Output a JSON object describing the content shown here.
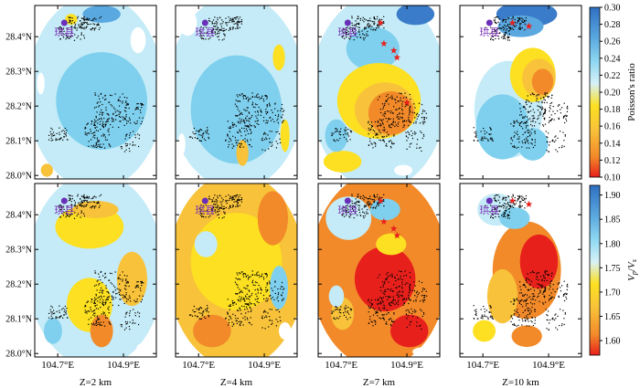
{
  "chart_data": {
    "type": "heatmap",
    "panel_layout": {
      "rows": 2,
      "cols": 4
    },
    "x_ticks": [
      "104.7°E",
      "104.9°E"
    ],
    "x_tick_values": [
      104.7,
      104.9
    ],
    "y_ticks": [
      "28.4°N",
      "28.3°N",
      "28.2°N",
      "28.1°N",
      "28.0°N"
    ],
    "y_tick_values": [
      28.4,
      28.3,
      28.2,
      28.1,
      28.0
    ],
    "xlim": [
      104.63,
      105.0
    ],
    "ylim": [
      27.99,
      28.49
    ],
    "depth_labels": [
      "Z=2 km",
      "Z=4 km",
      "Z=7 km",
      "Z=10 km"
    ],
    "depths_km": [
      2,
      4,
      7,
      10
    ],
    "city": {
      "name": "珙县",
      "lon": 104.72,
      "lat": 28.44
    },
    "earthquake_stars": [
      {
        "panel_col": 2,
        "locations": [
          [
            104.82,
            28.44
          ],
          [
            104.83,
            28.38
          ],
          [
            104.86,
            28.36
          ],
          [
            104.87,
            28.34
          ],
          [
            104.9,
            28.21
          ]
        ]
      },
      {
        "panel_col": 3,
        "locations": [
          [
            104.79,
            28.44
          ],
          [
            104.84,
            28.43
          ]
        ]
      }
    ],
    "series": [
      {
        "row": 0,
        "colorbar_ticks": [
          "0.30",
          "0.28",
          "0.26",
          "0.24",
          "0.22",
          "0.20",
          "0.18",
          "0.16",
          "0.14",
          "0.12",
          "0.10"
        ],
        "colorbar_range": [
          0.1,
          0.3
        ],
        "colorbar_label": "Poisson's ratio",
        "colormap": "red-orange-yellow-lightblue-blue (high values blue)"
      },
      {
        "row": 1,
        "colorbar_ticks": [
          "1.90",
          "1.85",
          "1.80",
          "1.75",
          "1.70",
          "1.65",
          "1.60"
        ],
        "colorbar_range": [
          1.57,
          1.92
        ],
        "colorbar_label": "Vp/Vs",
        "colormap": "red-orange-yellow-lightblue-blue (high values blue)"
      }
    ]
  },
  "colors": {
    "blue": "#3a7cc9",
    "light_blue": "#7fd0ee",
    "pale_blue": "#c4ebf7",
    "yellow": "#fce021",
    "orange": "#f5a623",
    "red": "#e8201c",
    "city_marker": "#6a2fb8",
    "star": "#e8201c"
  }
}
